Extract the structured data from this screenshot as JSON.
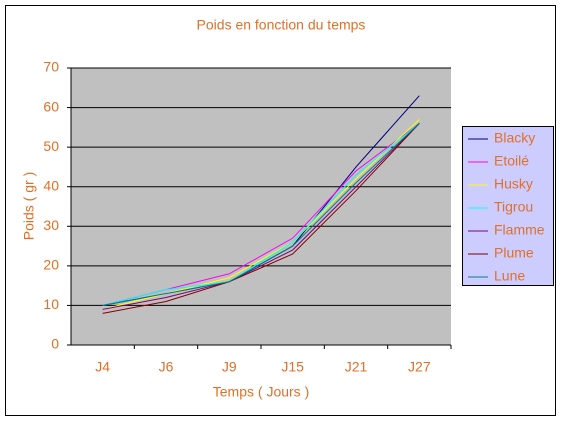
{
  "chart_data": {
    "type": "line",
    "title": "Poids en fonction du temps",
    "x_label": "Temps ( Jours )",
    "y_label": "Poids ( gr )",
    "categories": [
      "J4",
      "J6",
      "J9",
      "J15",
      "J21",
      "J27"
    ],
    "ylim": [
      0,
      70
    ],
    "yticks": [
      0,
      10,
      20,
      30,
      40,
      50,
      60,
      70
    ],
    "grid": true,
    "series": [
      {
        "name": "Blacky",
        "color": "#000080",
        "values": [
          10,
          13,
          16,
          25,
          45,
          63
        ]
      },
      {
        "name": "Etoilé",
        "color": "#ff00ff",
        "values": [
          10,
          14,
          18,
          27,
          44,
          56
        ]
      },
      {
        "name": "Husky",
        "color": "#ffff00",
        "values": [
          9,
          13,
          17,
          26,
          42,
          57
        ]
      },
      {
        "name": "Tigrou",
        "color": "#00ffff",
        "values": [
          10,
          14,
          16,
          26,
          43,
          56
        ]
      },
      {
        "name": "Flamme",
        "color": "#800080",
        "values": [
          9,
          12,
          16,
          24,
          40,
          56
        ]
      },
      {
        "name": "Plume",
        "color": "#800000",
        "values": [
          8,
          11,
          16,
          23,
          39,
          56
        ]
      },
      {
        "name": "Lune",
        "color": "#008080",
        "values": [
          10,
          13,
          16,
          25,
          41,
          56
        ]
      }
    ]
  }
}
